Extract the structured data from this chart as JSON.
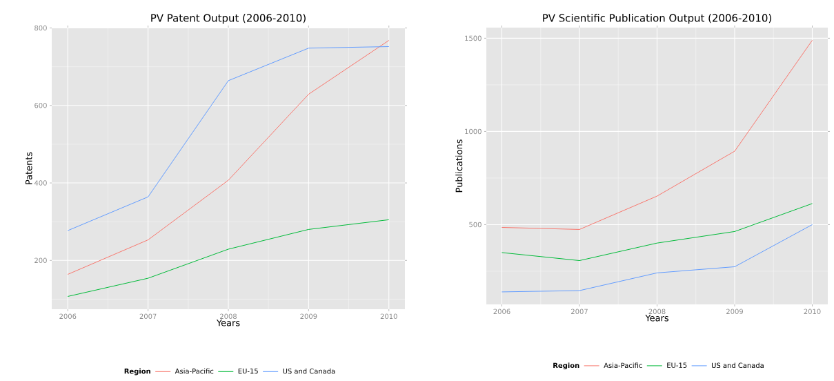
{
  "chart_data": [
    {
      "type": "line",
      "title": "PV Patent Output (2006-2010)",
      "xlabel": "Years",
      "ylabel": "Patents",
      "legend_title": "Region",
      "legend": "bottom",
      "grid": true,
      "marker": "none",
      "line_style": "solid",
      "x": [
        2006,
        2007,
        2008,
        2009,
        2010
      ],
      "xlim": [
        2005.8,
        2010.2
      ],
      "xticks": [
        2006,
        2007,
        2008,
        2009,
        2010
      ],
      "ylim": [
        74,
        801
      ],
      "yticks": [
        200,
        400,
        600,
        800
      ],
      "series": [
        {
          "name": "Asia-Pacific",
          "color": "#f8766d",
          "values": [
            164,
            253,
            407,
            629,
            768
          ]
        },
        {
          "name": "EU-15",
          "color": "#00ba38",
          "values": [
            107,
            154,
            229,
            280,
            305
          ]
        },
        {
          "name": "US and Canada",
          "color": "#619cff",
          "values": [
            277,
            364,
            664,
            748,
            752
          ]
        }
      ]
    },
    {
      "type": "line",
      "title": "PV Scientific Publication Output (2006-2010)",
      "xlabel": "Years",
      "ylabel": "Publications",
      "legend_title": "Region",
      "legend": "bottom",
      "grid": true,
      "marker": "none",
      "line_style": "solid",
      "x": [
        2006,
        2007,
        2008,
        2009,
        2010
      ],
      "xlim": [
        2005.8,
        2010.2
      ],
      "xticks": [
        2006,
        2007,
        2008,
        2009,
        2010
      ],
      "ylim": [
        72,
        1557
      ],
      "yticks": [
        500,
        1000,
        1500
      ],
      "series": [
        {
          "name": "Asia-Pacific",
          "color": "#f8766d",
          "values": [
            485,
            474,
            653,
            894,
            1489
          ]
        },
        {
          "name": "EU-15",
          "color": "#00ba38",
          "values": [
            350,
            307,
            401,
            463,
            613
          ]
        },
        {
          "name": "US and Canada",
          "color": "#619cff",
          "values": [
            139,
            146,
            241,
            274,
            500
          ]
        }
      ]
    }
  ]
}
